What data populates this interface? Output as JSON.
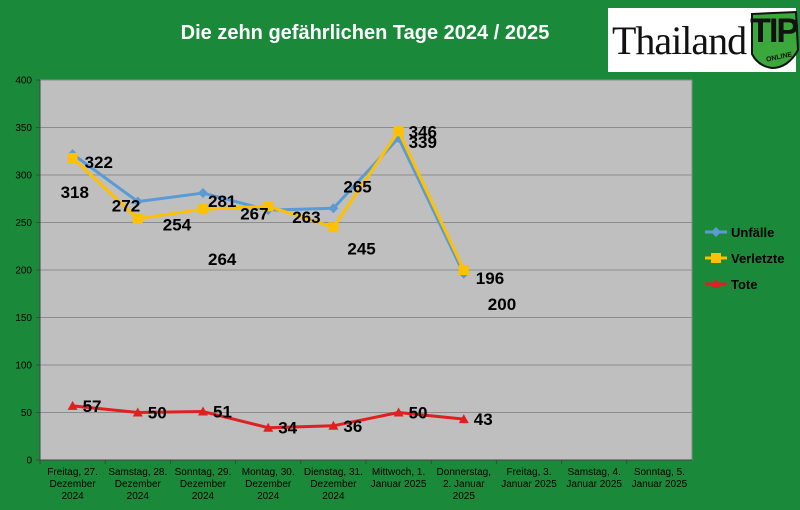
{
  "header": {
    "title": "Die zehn gefährlichen Tage 2024 / 2025"
  },
  "logo": {
    "word": "Thailand",
    "badge": "TIP",
    "tagline": "ONLINE"
  },
  "colors": {
    "background": "#1a8a3a",
    "plot_area": "#bfbfbf",
    "Unfälle": "#5b9bd5",
    "Verletzte": "#ffc000",
    "Tote": "#e02020"
  },
  "chart_data": {
    "type": "line",
    "title": "Die zehn gefährlichen Tage 2024 / 2025",
    "xlabel": "",
    "ylabel": "",
    "ylim": [
      0,
      400
    ],
    "yticks": [
      0,
      50,
      100,
      150,
      200,
      250,
      300,
      350,
      400
    ],
    "grid": true,
    "legend": "right",
    "categories": [
      [
        "Freitag, 27.",
        "Dezember",
        "2024"
      ],
      [
        "Samstag, 28.",
        "Dezember",
        "2024"
      ],
      [
        "Sonntag, 29.",
        "Dezember",
        "2024"
      ],
      [
        "Montag, 30.",
        "Dezember",
        "2024"
      ],
      [
        "Dienstag, 31.",
        "Dezember",
        "2024"
      ],
      [
        "Mittwoch, 1.",
        "Januar 2025"
      ],
      [
        "Donnerstag,",
        "2. Januar",
        "2025"
      ],
      [
        "Freitag, 3.",
        "Januar 2025"
      ],
      [
        "Samstag, 4.",
        "Januar 2025"
      ],
      [
        "Sonntag, 5.",
        "Januar 2025"
      ]
    ],
    "series": [
      {
        "name": "Unfälle",
        "marker": "diamond",
        "values": [
          322,
          272,
          281,
          263,
          265,
          339,
          196,
          null,
          null,
          null
        ]
      },
      {
        "name": "Verletzte",
        "marker": "square",
        "values": [
          318,
          254,
          264,
          267,
          245,
          346,
          200,
          null,
          null,
          null
        ]
      },
      {
        "name": "Tote",
        "marker": "triangle",
        "values": [
          57,
          50,
          51,
          34,
          36,
          50,
          43,
          null,
          null,
          null
        ]
      }
    ]
  }
}
